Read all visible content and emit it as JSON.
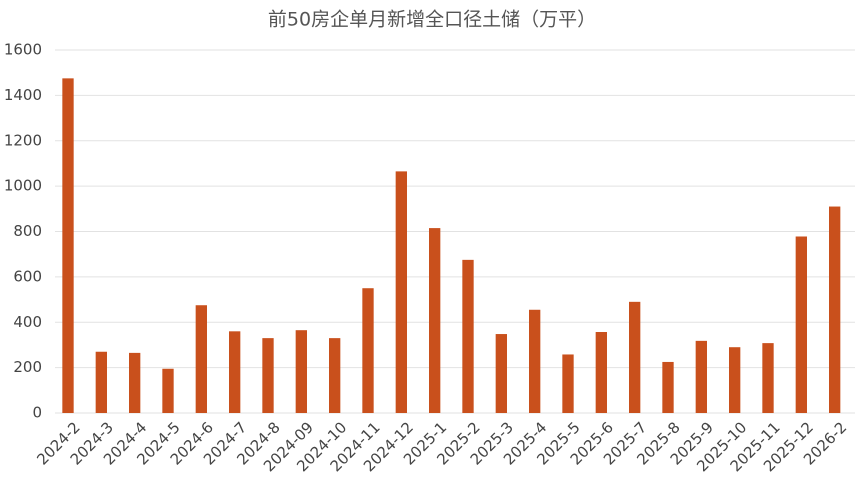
{
  "chart_data": {
    "type": "bar",
    "title": "前50房企单月新增全口径土储（万平）",
    "categories": [
      "2024-2",
      "2024-3",
      "2024-4",
      "2024-5",
      "2024-6",
      "2024-7",
      "2024-8",
      "2024-09",
      "2024-10",
      "2024-11",
      "2024-12",
      "2025-1",
      "2025-2",
      "2025-3",
      "2025-4",
      "2025-5",
      "2025-6",
      "2025-7",
      "2025-8",
      "2025-9",
      "2025-10",
      "2025-11",
      "2025-12",
      "2026-2"
    ],
    "values": [
      1475,
      270,
      265,
      195,
      475,
      360,
      330,
      365,
      330,
      550,
      1065,
      815,
      675,
      348,
      455,
      258,
      357,
      490,
      225,
      318,
      290,
      308,
      778,
      910
    ],
    "color": "#c9501c",
    "ylim": [
      0,
      1600
    ],
    "yticks": [
      0,
      200,
      400,
      600,
      800,
      1000,
      1200,
      1400,
      1600
    ],
    "grid": true
  }
}
